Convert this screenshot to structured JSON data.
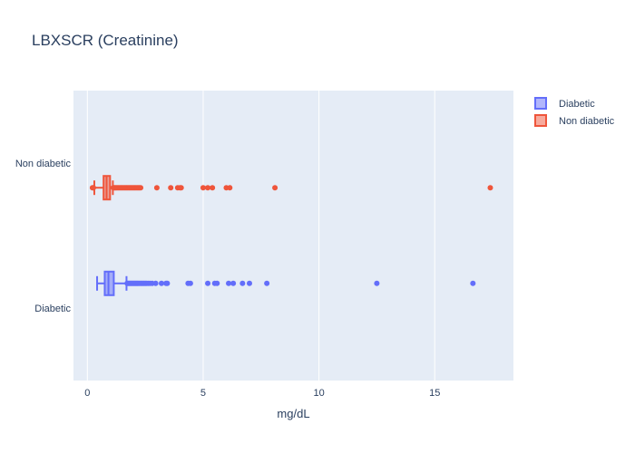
{
  "chart_data": {
    "type": "box",
    "orientation": "horizontal",
    "title": "LBXSCR (Creatinine)",
    "xlabel": "mg/dL",
    "ylabel": "",
    "xlim": [
      -0.6,
      18.4
    ],
    "x_ticks": [
      0,
      5,
      10,
      15
    ],
    "x_tick_labels": [
      "0",
      "5",
      "10",
      "15"
    ],
    "categories": [
      "Diabetic",
      "Non diabetic"
    ],
    "legend_position": "top-right",
    "grid": true,
    "plot_background": "#e5ecf6",
    "series": [
      {
        "name": "Diabetic",
        "color": "#636efa",
        "fill": "rgba(99,110,250,0.5)",
        "category": "Diabetic",
        "lowerfence": 0.42,
        "q1": 0.75,
        "median": 0.91,
        "q3": 1.14,
        "upperfence": 1.69,
        "outliers": [
          1.72,
          1.76,
          1.8,
          1.84,
          1.88,
          1.92,
          1.96,
          2.0,
          2.04,
          2.08,
          2.12,
          2.16,
          2.2,
          2.25,
          2.3,
          2.35,
          2.4,
          2.45,
          2.5,
          2.55,
          2.62,
          2.7,
          2.8,
          2.95,
          3.2,
          3.4,
          3.45,
          4.35,
          4.45,
          5.2,
          5.5,
          5.6,
          6.1,
          6.3,
          6.7,
          7.0,
          7.75,
          12.5,
          16.65
        ]
      },
      {
        "name": "Non diabetic",
        "color": "#ef553b",
        "fill": "rgba(239,85,59,0.5)",
        "category": "Non diabetic",
        "lowerfence": 0.3,
        "q1": 0.7,
        "median": 0.83,
        "q3": 0.98,
        "upperfence": 1.1,
        "outliers": [
          0.22,
          0.26,
          1.12,
          1.16,
          1.2,
          1.25,
          1.3,
          1.35,
          1.4,
          1.45,
          1.5,
          1.55,
          1.6,
          1.65,
          1.7,
          1.75,
          1.8,
          1.85,
          1.9,
          1.95,
          2.0,
          2.05,
          2.1,
          2.15,
          2.2,
          2.25,
          2.3,
          3.0,
          3.6,
          3.9,
          4.0,
          4.05,
          5.0,
          5.2,
          5.4,
          6.0,
          6.15,
          8.1,
          17.4
        ]
      }
    ]
  }
}
